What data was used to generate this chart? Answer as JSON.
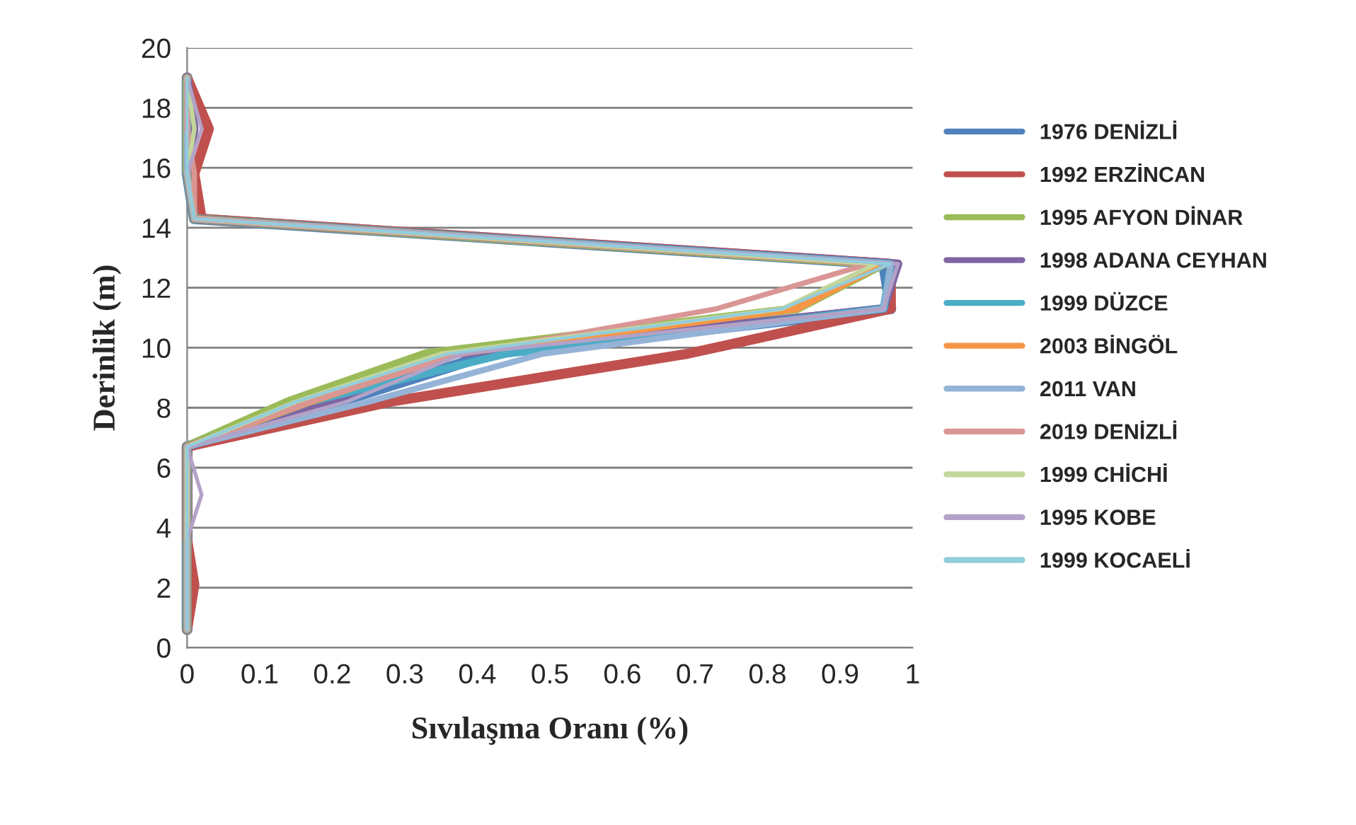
{
  "chart_data": {
    "type": "line",
    "xlabel": "Sıvılaşma Oranı (%)",
    "ylabel": "Derinlik (m)",
    "xlim": [
      0,
      1
    ],
    "xticks": [
      0,
      0.1,
      0.2,
      0.3,
      0.4,
      0.5,
      0.6,
      0.7,
      0.8,
      0.9,
      1
    ],
    "ylim": [
      0,
      20
    ],
    "yticks": [
      0,
      2,
      4,
      6,
      8,
      10,
      12,
      14,
      16,
      18,
      20
    ],
    "grid": "y",
    "legend": "right",
    "marker": "none",
    "line_style": "solid",
    "series": [
      {
        "name": "1976 DENİZLİ",
        "color": "#4f81bd",
        "x": [
          0,
          0,
          0,
          0,
          0,
          0.21,
          0.42,
          0.97,
          0.96,
          0.01,
          0,
          0,
          0
        ],
        "values": [
          0.6,
          2.1,
          3.6,
          5.1,
          6.7,
          8.2,
          9.8,
          11.3,
          12.8,
          14.3,
          15.8,
          17.3,
          19.0
        ]
      },
      {
        "name": "1992 ERZİNCAN",
        "color": "#c0504d",
        "x": [
          0,
          0.01,
          0,
          0,
          0,
          0.28,
          0.69,
          0.97,
          0.97,
          0.02,
          0.01,
          0.03,
          0
        ],
        "values": [
          0.6,
          2.1,
          3.6,
          5.1,
          6.7,
          8.2,
          9.8,
          11.3,
          12.8,
          14.3,
          15.8,
          17.3,
          19.0
        ]
      },
      {
        "name": "1995 AFYON DİNAR",
        "color": "#9bbb59",
        "x": [
          0,
          0,
          0,
          0,
          0,
          0.14,
          0.33,
          0.84,
          0.96,
          0.01,
          0,
          0,
          0
        ],
        "values": [
          0.6,
          2.1,
          3.6,
          5.1,
          6.7,
          8.2,
          9.8,
          11.3,
          12.8,
          14.3,
          15.8,
          17.3,
          19.0
        ]
      },
      {
        "name": "1998 ADANA CEYHAN",
        "color": "#8064a2",
        "x": [
          0,
          0,
          0,
          0,
          0,
          0.2,
          0.37,
          0.96,
          0.98,
          0.01,
          0,
          0.01,
          0
        ],
        "values": [
          0.6,
          2.1,
          3.6,
          5.1,
          6.7,
          8.2,
          9.8,
          11.3,
          12.8,
          14.3,
          15.8,
          17.3,
          19.0
        ]
      },
      {
        "name": "1999 DÜZCE",
        "color": "#4bacc6",
        "x": [
          0,
          0,
          0,
          0,
          0,
          0.17,
          0.44,
          0.96,
          0.97,
          0.01,
          0,
          0,
          0
        ],
        "values": [
          0.6,
          2.1,
          3.6,
          5.1,
          6.7,
          8.2,
          9.8,
          11.3,
          12.8,
          14.3,
          15.8,
          17.3,
          19.0
        ]
      },
      {
        "name": "2003 BİNGÖL",
        "color": "#f79646",
        "x": [
          0,
          0,
          0,
          0,
          0,
          0.17,
          0.37,
          0.84,
          0.96,
          0.01,
          0,
          0,
          0
        ],
        "values": [
          0.6,
          2.1,
          3.6,
          5.1,
          6.7,
          8.2,
          9.8,
          11.3,
          12.8,
          14.3,
          15.8,
          17.3,
          19.0
        ]
      },
      {
        "name": "2011 VAN",
        "color": "#95b3d7",
        "x": [
          0,
          0,
          0,
          0,
          0,
          0.25,
          0.49,
          0.96,
          0.97,
          0.01,
          0,
          0,
          0
        ],
        "values": [
          0.6,
          2.1,
          3.6,
          5.1,
          6.7,
          8.2,
          9.8,
          11.3,
          12.8,
          14.3,
          15.8,
          17.3,
          19.0
        ]
      },
      {
        "name": "2019 DENİZLİ",
        "color": "#d99694",
        "x": [
          0,
          0,
          0,
          0,
          0,
          0.17,
          0.38,
          0.73,
          0.94,
          0.01,
          0.01,
          0,
          0
        ],
        "values": [
          0.6,
          2.1,
          3.6,
          5.1,
          6.7,
          8.2,
          9.8,
          11.3,
          12.8,
          14.3,
          15.8,
          17.3,
          19.0
        ]
      },
      {
        "name": "1999 CHİCHİ",
        "color": "#c3d69b",
        "x": [
          0,
          0,
          0,
          0,
          0,
          0.15,
          0.35,
          0.82,
          0.95,
          0.01,
          0,
          0.01,
          0
        ],
        "values": [
          0.6,
          2.1,
          3.6,
          5.1,
          6.7,
          8.2,
          9.8,
          11.3,
          12.8,
          14.3,
          15.8,
          17.3,
          19.0
        ]
      },
      {
        "name": "1995 KOBE",
        "color": "#b3a2c7",
        "x": [
          0,
          0,
          0,
          0.02,
          0,
          0.22,
          0.38,
          0.96,
          0.98,
          0.01,
          0,
          0.02,
          0
        ],
        "values": [
          0.6,
          2.1,
          3.6,
          5.1,
          6.7,
          8.2,
          9.8,
          11.3,
          12.8,
          14.3,
          15.8,
          17.3,
          19.0
        ]
      },
      {
        "name": "1999 KOCAELİ",
        "color": "#93cddd",
        "x": [
          0,
          0,
          0,
          0,
          0,
          0.15,
          0.36,
          0.82,
          0.97,
          0.01,
          0,
          0,
          0
        ],
        "values": [
          0.6,
          2.1,
          3.6,
          5.1,
          6.7,
          8.2,
          9.8,
          11.3,
          12.8,
          14.3,
          15.8,
          17.3,
          19.0
        ]
      }
    ]
  }
}
